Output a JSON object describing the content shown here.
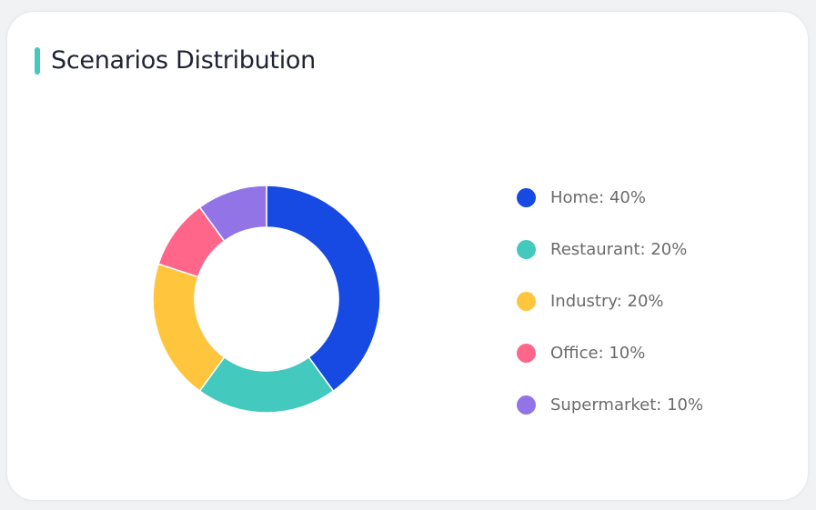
{
  "card": {
    "title": "Scenarios Distribution",
    "accent_color": "#44c9be"
  },
  "chart_data": {
    "type": "pie",
    "donut": true,
    "legend_position": "right",
    "categories": [
      "Home",
      "Restaurant",
      "Industry",
      "Office",
      "Supermarket"
    ],
    "values": [
      40,
      20,
      20,
      10,
      10
    ],
    "colors": [
      "#1749e3",
      "#44c9be",
      "#ffc53d",
      "#ff668a",
      "#9374e6"
    ],
    "legend_labels": [
      "Home: 40%",
      "Restaurant: 20%",
      "Industry: 20%",
      "Office: 10%",
      "Supermarket: 10%"
    ]
  }
}
